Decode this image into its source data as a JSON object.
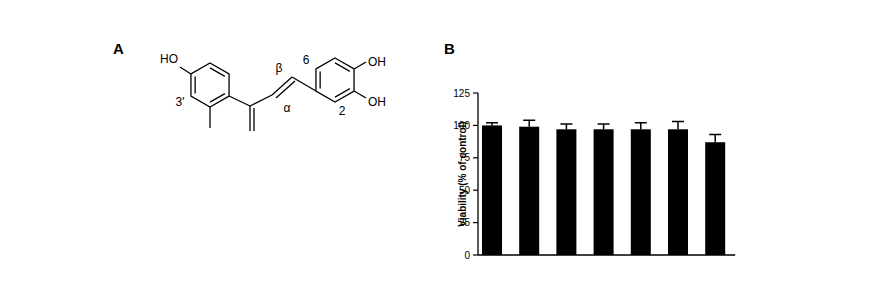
{
  "panel_labels": [
    "A",
    "B"
  ],
  "structure": {
    "labels": {
      "ho": "HO",
      "oh_4": "OH",
      "oh_3": "OH",
      "c6": "6",
      "c2": "2",
      "beta": "β",
      "alpha": "α",
      "c3p": "3'"
    }
  },
  "chart_data": {
    "type": "bar",
    "categories": [
      null,
      null,
      null,
      null,
      null,
      null,
      null
    ],
    "values": [
      100,
      99,
      97,
      97,
      97,
      97,
      87
    ],
    "errors": [
      2,
      5,
      4,
      4,
      5,
      6,
      6
    ],
    "color": "#000000",
    "ylim": [
      0,
      125
    ],
    "yticks": [
      0,
      25,
      50,
      75,
      100,
      125
    ],
    "ylabel": "Viability (% of control)",
    "tick_labels": "y"
  }
}
